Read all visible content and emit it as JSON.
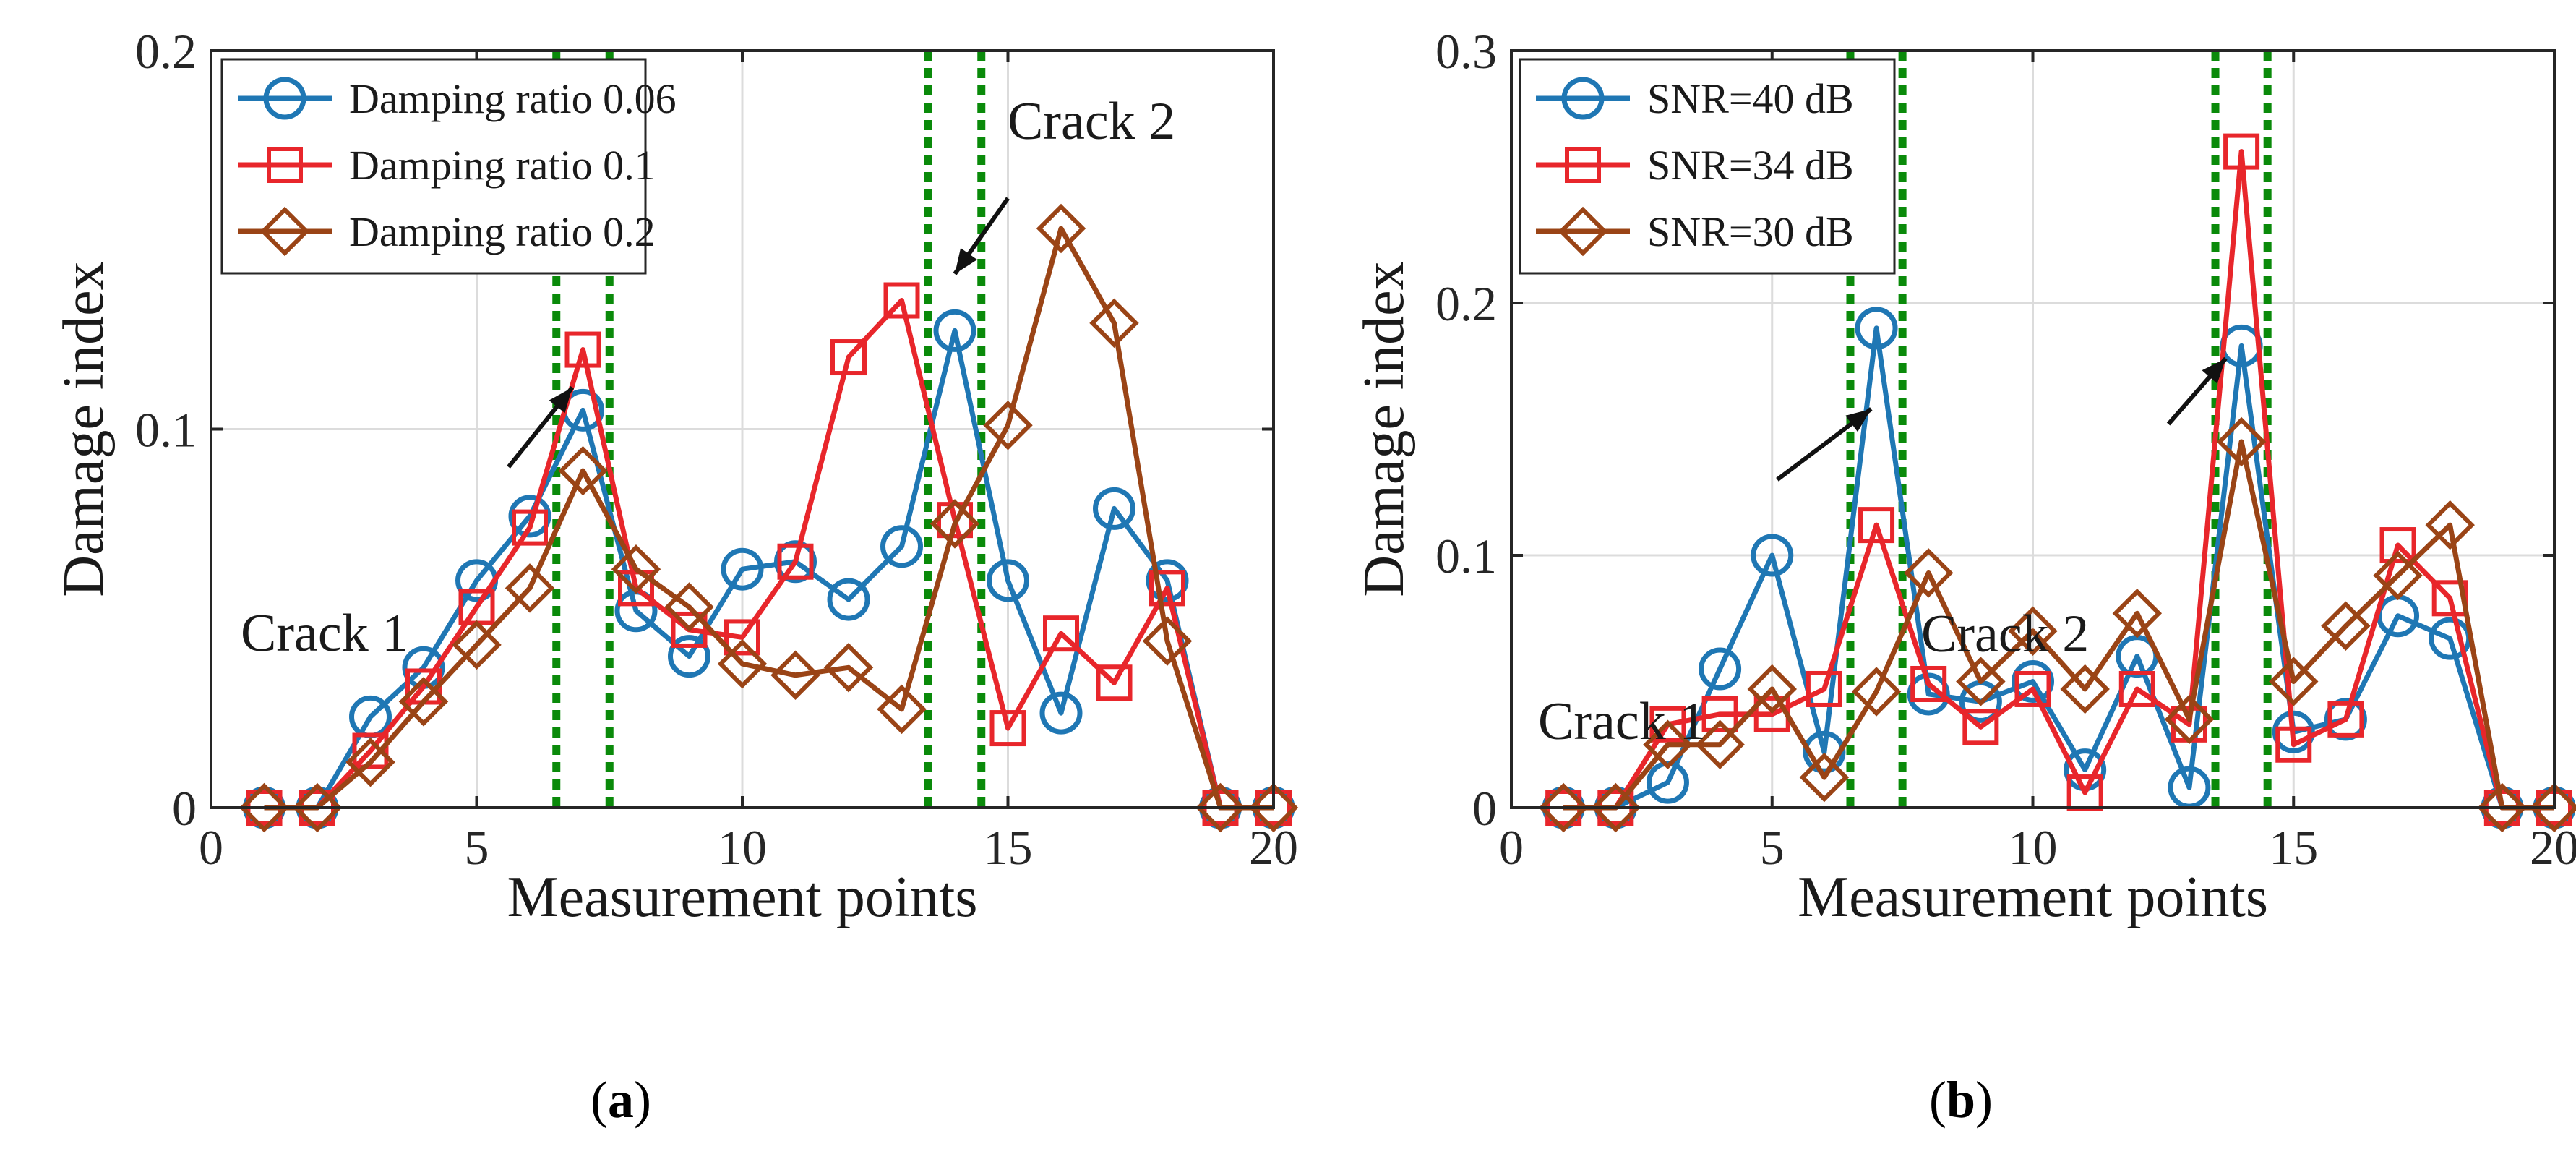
{
  "chart_data": [
    {
      "type": "line",
      "panel_label": "a",
      "caption_open": "(",
      "caption_close": ")",
      "xlabel": "Measurement points",
      "ylabel": "Damage index",
      "xlim": [
        0,
        20
      ],
      "ylim": [
        0,
        0.2
      ],
      "xticks": [
        0,
        5,
        10,
        15,
        20
      ],
      "xtick_labels": [
        "0",
        "5",
        "10",
        "15",
        "20"
      ],
      "yticks": [
        0,
        0.1,
        0.2
      ],
      "ytick_labels": [
        "0",
        "0.1",
        "0.2"
      ],
      "grid": true,
      "legend_position": "top-left",
      "crack_zones": [
        [
          6.5,
          7.5
        ],
        [
          13.5,
          14.5
        ]
      ],
      "annotations": [
        {
          "text": "Crack 1",
          "point_to": [
            6.8,
            0.111
          ],
          "from": [
            5.6,
            0.09
          ]
        },
        {
          "text": "Crack 2",
          "point_to": [
            14.0,
            0.141
          ],
          "from": [
            15.0,
            0.161
          ]
        }
      ],
      "x": [
        1,
        2,
        3,
        4,
        5,
        6,
        7,
        8,
        9,
        10,
        11,
        12,
        13,
        14,
        15,
        16,
        17,
        18,
        19,
        20
      ],
      "series": [
        {
          "name": "Damping ratio 0.06",
          "color": "#1f77b4",
          "marker": "circle",
          "values": [
            0,
            0,
            0.024,
            0.037,
            0.06,
            0.077,
            0.105,
            0.052,
            0.04,
            0.063,
            0.065,
            0.055,
            0.069,
            0.126,
            0.06,
            0.025,
            0.079,
            0.06,
            0,
            0
          ]
        },
        {
          "name": "Damping ratio 0.1",
          "color": "#e8262b",
          "marker": "square",
          "values": [
            0,
            0,
            0.015,
            0.032,
            0.053,
            0.074,
            0.121,
            0.058,
            0.047,
            0.045,
            0.065,
            0.119,
            0.134,
            0.076,
            0.021,
            0.046,
            0.033,
            0.058,
            0,
            0
          ]
        },
        {
          "name": "Damping ratio 0.2",
          "color": "#9a4416",
          "marker": "diamond",
          "values": [
            0,
            0,
            0.012,
            0.028,
            0.043,
            0.058,
            0.089,
            0.063,
            0.053,
            0.038,
            0.035,
            0.037,
            0.026,
            0.075,
            0.101,
            0.153,
            0.128,
            0.044,
            0,
            0
          ]
        }
      ]
    },
    {
      "type": "line",
      "panel_label": "b",
      "caption_open": "(",
      "caption_close": ")",
      "xlabel": "Measurement points",
      "ylabel": "Damage index",
      "xlim": [
        0,
        20
      ],
      "ylim": [
        0,
        0.3
      ],
      "xticks": [
        0,
        5,
        10,
        15,
        20
      ],
      "xtick_labels": [
        "0",
        "5",
        "10",
        "15",
        "20"
      ],
      "yticks": [
        0,
        0.1,
        0.2,
        0.3
      ],
      "ytick_labels": [
        "0",
        "0.1",
        "0.2",
        "0.3"
      ],
      "grid": true,
      "legend_position": "top-left",
      "crack_zones": [
        [
          6.5,
          7.5
        ],
        [
          13.5,
          14.5
        ]
      ],
      "annotations": [
        {
          "text": "Crack 1",
          "point_to": [
            6.9,
            0.158
          ],
          "from": [
            5.1,
            0.13
          ]
        },
        {
          "text": "Crack 2",
          "point_to": [
            13.7,
            0.178
          ],
          "from": [
            12.6,
            0.152
          ]
        }
      ],
      "x": [
        1,
        2,
        3,
        4,
        5,
        6,
        7,
        8,
        9,
        10,
        11,
        12,
        13,
        14,
        15,
        16,
        17,
        18,
        19,
        20
      ],
      "series": [
        {
          "name": "SNR=40 dB",
          "color": "#1f77b4",
          "marker": "circle",
          "values": [
            0,
            0,
            0.01,
            0.055,
            0.1,
            0.022,
            0.19,
            0.045,
            0.042,
            0.05,
            0.015,
            0.06,
            0.008,
            0.183,
            0.03,
            0.035,
            0.076,
            0.067,
            0,
            0
          ]
        },
        {
          "name": "SNR=34 dB",
          "color": "#e8262b",
          "marker": "square",
          "values": [
            0,
            0,
            0.033,
            0.037,
            0.037,
            0.047,
            0.112,
            0.049,
            0.032,
            0.047,
            0.006,
            0.047,
            0.033,
            0.26,
            0.025,
            0.035,
            0.104,
            0.083,
            0,
            0
          ]
        },
        {
          "name": "SNR=30 dB",
          "color": "#9a4416",
          "marker": "diamond",
          "values": [
            0,
            0,
            0.025,
            0.025,
            0.047,
            0.012,
            0.046,
            0.093,
            0.05,
            0.07,
            0.047,
            0.077,
            0.035,
            0.145,
            0.05,
            0.072,
            0.092,
            0.112,
            0,
            0
          ]
        }
      ]
    }
  ]
}
